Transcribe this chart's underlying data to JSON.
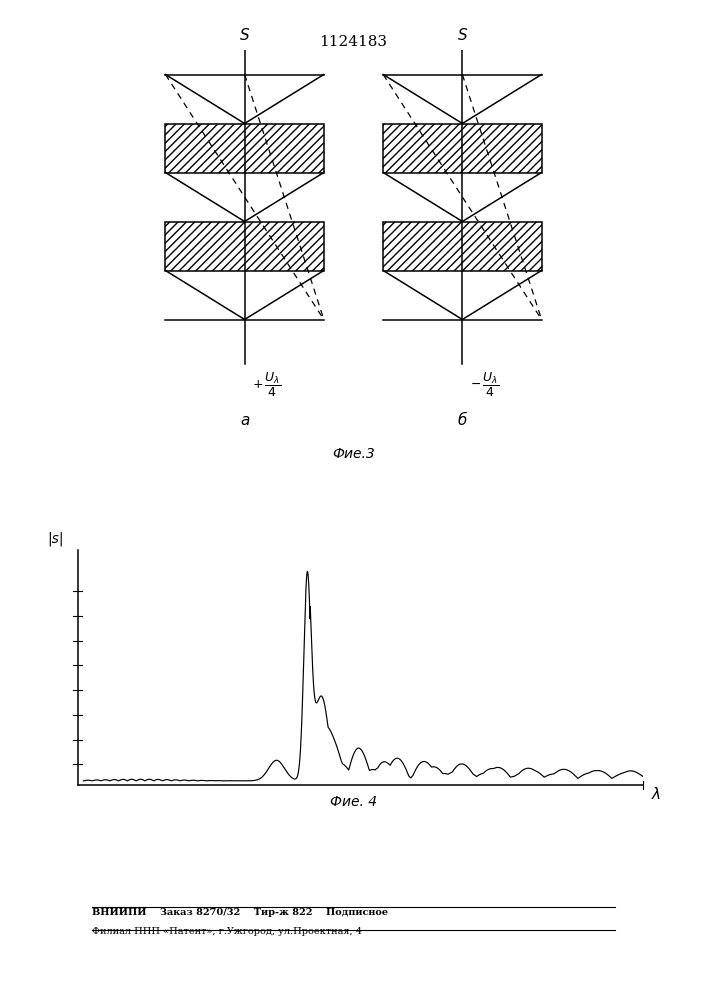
{
  "page_title": "1124183",
  "fig3_label": "Фие.3",
  "fig4_label": "Фие. 4",
  "label_a": "a",
  "label_b": "б",
  "s_label": "S",
  "ylabel_fig4": "|s|",
  "xlabel_fig4": "λ",
  "footer_line1": "ВНИИПИ    Заказ 8270/32    Тир-ж 822    Подписное",
  "footer_line2": "Филиал ППП «Патент», г.Ужгород, ул.Проектная, 4",
  "background_color": "#ffffff",
  "line_color": "#000000"
}
